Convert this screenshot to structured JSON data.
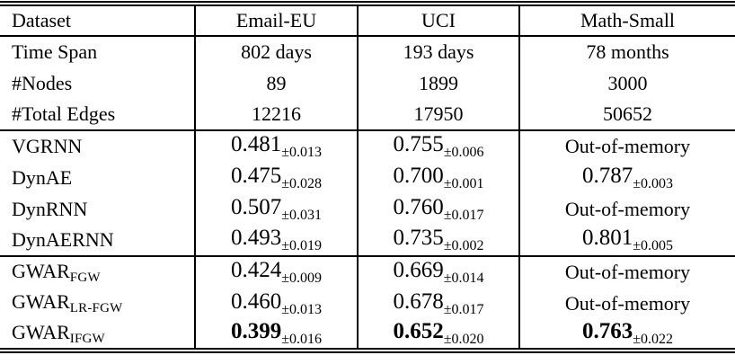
{
  "colors": {
    "text": "#000000",
    "background": "#ffffff"
  },
  "table": {
    "header": [
      "Dataset",
      "Email-EU",
      "UCI",
      "Math-Small"
    ],
    "sections": [
      {
        "name": "dataset-statistics",
        "rows": [
          {
            "label": {
              "base": "Time Span",
              "sub": ""
            },
            "cells": [
              {
                "text": "802 days"
              },
              {
                "text": "193 days"
              },
              {
                "text": "78 months"
              }
            ]
          },
          {
            "label": {
              "base": "#Nodes",
              "sub": ""
            },
            "cells": [
              {
                "text": "89"
              },
              {
                "text": "1899"
              },
              {
                "text": "3000"
              }
            ]
          },
          {
            "label": {
              "base": "#Total Edges",
              "sub": ""
            },
            "cells": [
              {
                "text": "12216"
              },
              {
                "text": "17950"
              },
              {
                "text": "50652"
              }
            ]
          }
        ]
      },
      {
        "name": "baseline-methods",
        "rows": [
          {
            "label": {
              "base": "VGRNN",
              "sub": ""
            },
            "cells": [
              {
                "value": "0.481",
                "pm": "±0.013",
                "bold": false
              },
              {
                "value": "0.755",
                "pm": "±0.006",
                "bold": false
              },
              {
                "text": "Out-of-memory"
              }
            ]
          },
          {
            "label": {
              "base": "DynAE",
              "sub": ""
            },
            "cells": [
              {
                "value": "0.475",
                "pm": "±0.028",
                "bold": false
              },
              {
                "value": "0.700",
                "pm": "±0.001",
                "bold": false
              },
              {
                "value": "0.787",
                "pm": "±0.003",
                "bold": false
              }
            ]
          },
          {
            "label": {
              "base": "DynRNN",
              "sub": ""
            },
            "cells": [
              {
                "value": "0.507",
                "pm": "±0.031",
                "bold": false
              },
              {
                "value": "0.760",
                "pm": "±0.017",
                "bold": false
              },
              {
                "text": "Out-of-memory"
              }
            ]
          },
          {
            "label": {
              "base": "DynAERNN",
              "sub": ""
            },
            "cells": [
              {
                "value": "0.493",
                "pm": "±0.019",
                "bold": false
              },
              {
                "value": "0.735",
                "pm": "±0.002",
                "bold": false
              },
              {
                "value": "0.801",
                "pm": "±0.005",
                "bold": false
              }
            ]
          }
        ]
      },
      {
        "name": "gwar-methods",
        "rows": [
          {
            "label": {
              "base": "GWAR",
              "sub": "FGW"
            },
            "cells": [
              {
                "value": "0.424",
                "pm": "±0.009",
                "bold": false
              },
              {
                "value": "0.669",
                "pm": "±0.014",
                "bold": false
              },
              {
                "text": "Out-of-memory"
              }
            ]
          },
          {
            "label": {
              "base": "GWAR",
              "sub": "LR-FGW"
            },
            "cells": [
              {
                "value": "0.460",
                "pm": "±0.013",
                "bold": false
              },
              {
                "value": "0.678",
                "pm": "±0.017",
                "bold": false
              },
              {
                "text": "Out-of-memory"
              }
            ]
          },
          {
            "label": {
              "base": "GWAR",
              "sub": "IFGW"
            },
            "cells": [
              {
                "value": "0.399",
                "pm": "±0.016",
                "bold": true
              },
              {
                "value": "0.652",
                "pm": "±0.020",
                "bold": true
              },
              {
                "value": "0.763",
                "pm": "±0.022",
                "bold": true
              }
            ]
          }
        ]
      }
    ]
  }
}
